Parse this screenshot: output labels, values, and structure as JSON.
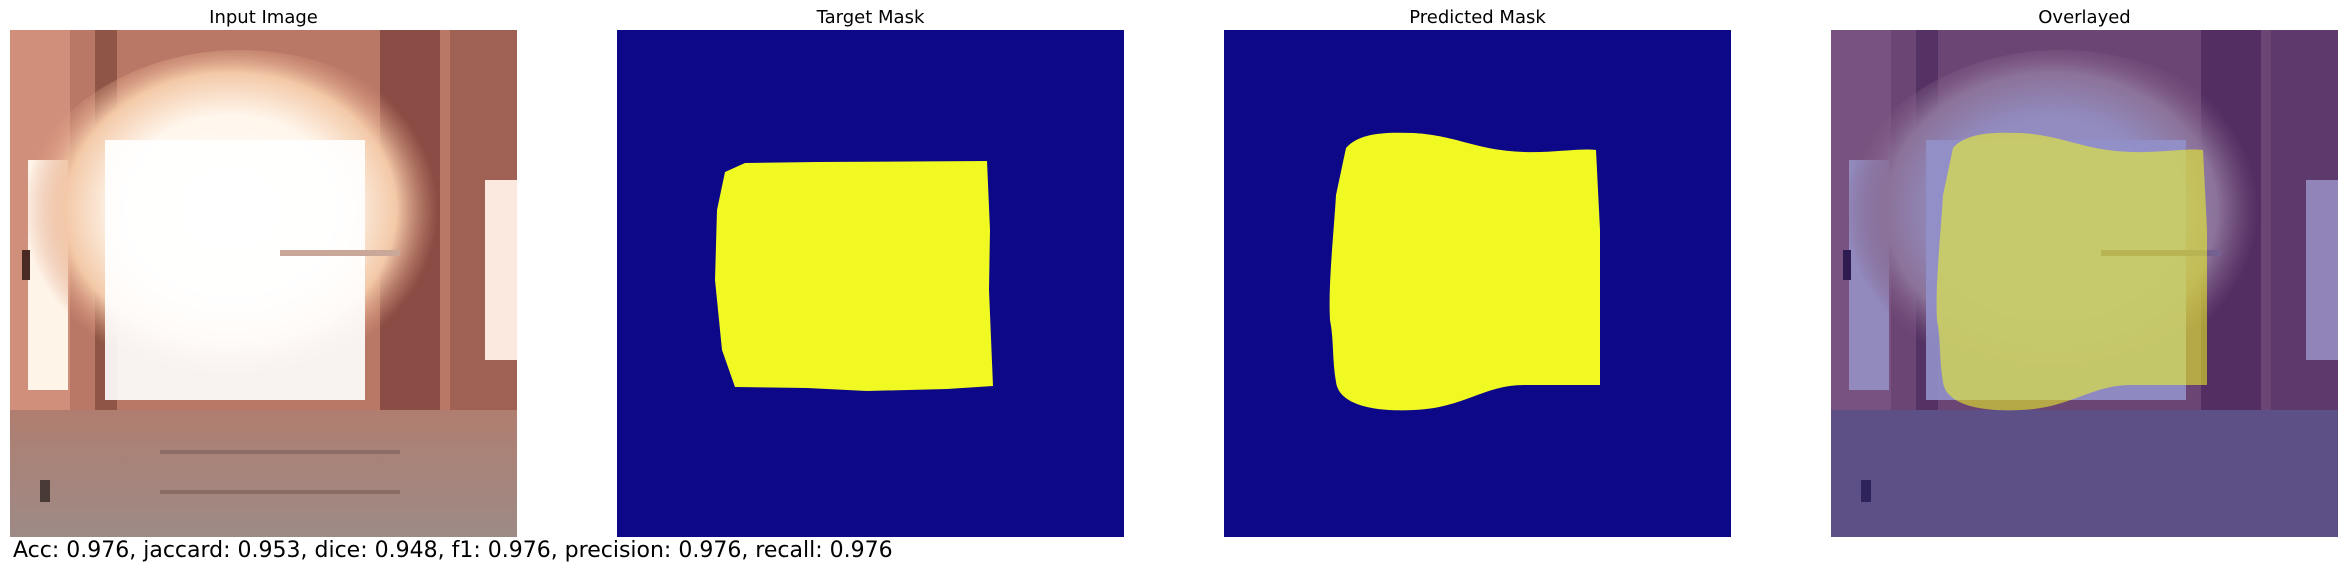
{
  "figure": {
    "panels": [
      {
        "title": "Input Image"
      },
      {
        "title": "Target Mask"
      },
      {
        "title": "Predicted Mask"
      },
      {
        "title": "Overlayed"
      }
    ],
    "metrics_text": "Acc: 0.976, jaccard: 0.953, dice: 0.948, f1: 0.976, precision: 0.976, recall: 0.976"
  },
  "colors": {
    "mask_background": "#0d0887",
    "mask_foreground": "#f0f921"
  }
}
